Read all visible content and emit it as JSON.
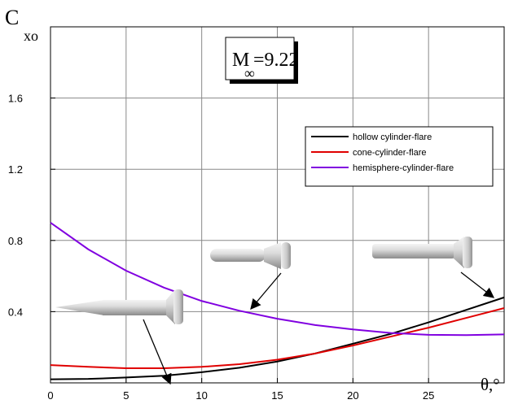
{
  "chart_data": {
    "type": "line",
    "ylabel": {
      "main": "C",
      "sub": "xo"
    },
    "xlabel": "θ,°",
    "annotation": {
      "main": "M",
      "sub": "∞",
      "rest": "=9.22"
    },
    "x": [
      0,
      2.5,
      5,
      7.5,
      10,
      12.5,
      15,
      17.5,
      20,
      22.5,
      25,
      27.5,
      30
    ],
    "series": [
      {
        "name": "hollow cylinder-flare",
        "color": "#000000",
        "values": [
          0.02,
          0.022,
          0.03,
          0.04,
          0.06,
          0.085,
          0.12,
          0.165,
          0.22,
          0.275,
          0.34,
          0.41,
          0.48
        ]
      },
      {
        "name": "cone-cylinder-flare",
        "color": "#e00000",
        "values": [
          0.1,
          0.09,
          0.082,
          0.082,
          0.09,
          0.105,
          0.13,
          0.165,
          0.21,
          0.26,
          0.31,
          0.365,
          0.42
        ]
      },
      {
        "name": "hemisphere-cylinder-flare",
        "color": "#8000e0",
        "values": [
          0.9,
          0.75,
          0.63,
          0.535,
          0.46,
          0.405,
          0.36,
          0.325,
          0.3,
          0.28,
          0.27,
          0.268,
          0.272
        ]
      }
    ],
    "xlim": [
      0,
      30
    ],
    "xticks": [
      0,
      5,
      10,
      15,
      20,
      25
    ],
    "ylim": [
      0,
      2.0
    ],
    "yticks": [
      0.4,
      0.8,
      1.2,
      1.6
    ],
    "grid": true
  }
}
